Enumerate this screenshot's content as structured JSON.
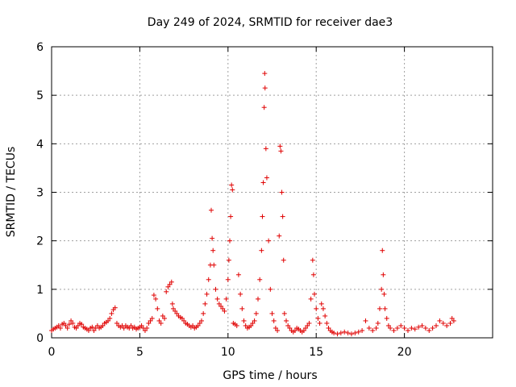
{
  "chart_data": {
    "type": "scatter",
    "title": "Day 249 of 2024, SRMTID for receiver dae3",
    "xlabel": "GPS time / hours",
    "ylabel": "SRMTID / TECUs",
    "xlim": [
      0,
      25
    ],
    "ylim": [
      0,
      6
    ],
    "xticks": [
      0,
      5,
      10,
      15,
      20
    ],
    "yticks": [
      0,
      1,
      2,
      3,
      4,
      5,
      6
    ],
    "grid": true,
    "marker": "+",
    "color": "#e00000",
    "series": [
      {
        "name": "SRMTID",
        "points": [
          [
            0.0,
            0.15
          ],
          [
            0.1,
            0.18
          ],
          [
            0.2,
            0.2
          ],
          [
            0.3,
            0.22
          ],
          [
            0.4,
            0.25
          ],
          [
            0.5,
            0.2
          ],
          [
            0.6,
            0.28
          ],
          [
            0.7,
            0.3
          ],
          [
            0.8,
            0.25
          ],
          [
            0.9,
            0.2
          ],
          [
            1.0,
            0.28
          ],
          [
            1.1,
            0.35
          ],
          [
            1.2,
            0.3
          ],
          [
            1.3,
            0.22
          ],
          [
            1.4,
            0.2
          ],
          [
            1.5,
            0.25
          ],
          [
            1.6,
            0.3
          ],
          [
            1.7,
            0.28
          ],
          [
            1.8,
            0.22
          ],
          [
            1.9,
            0.2
          ],
          [
            2.0,
            0.18
          ],
          [
            2.1,
            0.15
          ],
          [
            2.2,
            0.2
          ],
          [
            2.3,
            0.22
          ],
          [
            2.4,
            0.15
          ],
          [
            2.5,
            0.2
          ],
          [
            2.6,
            0.25
          ],
          [
            2.7,
            0.2
          ],
          [
            2.8,
            0.22
          ],
          [
            2.9,
            0.25
          ],
          [
            3.0,
            0.3
          ],
          [
            3.1,
            0.32
          ],
          [
            3.2,
            0.35
          ],
          [
            3.3,
            0.4
          ],
          [
            3.4,
            0.5
          ],
          [
            3.5,
            0.58
          ],
          [
            3.6,
            0.62
          ],
          [
            3.7,
            0.3
          ],
          [
            3.8,
            0.25
          ],
          [
            3.9,
            0.22
          ],
          [
            4.0,
            0.25
          ],
          [
            4.1,
            0.2
          ],
          [
            4.2,
            0.25
          ],
          [
            4.3,
            0.22
          ],
          [
            4.4,
            0.2
          ],
          [
            4.5,
            0.25
          ],
          [
            4.6,
            0.2
          ],
          [
            4.7,
            0.22
          ],
          [
            4.8,
            0.18
          ],
          [
            4.9,
            0.2
          ],
          [
            5.0,
            0.22
          ],
          [
            5.1,
            0.25
          ],
          [
            5.2,
            0.2
          ],
          [
            5.3,
            0.15
          ],
          [
            5.4,
            0.2
          ],
          [
            5.5,
            0.3
          ],
          [
            5.6,
            0.35
          ],
          [
            5.7,
            0.4
          ],
          [
            5.8,
            0.88
          ],
          [
            5.9,
            0.8
          ],
          [
            6.0,
            0.6
          ],
          [
            6.1,
            0.35
          ],
          [
            6.2,
            0.3
          ],
          [
            6.3,
            0.45
          ],
          [
            6.4,
            0.4
          ],
          [
            6.5,
            0.95
          ],
          [
            6.6,
            1.05
          ],
          [
            6.7,
            1.1
          ],
          [
            6.8,
            1.15
          ],
          [
            6.85,
            0.7
          ],
          [
            6.9,
            0.6
          ],
          [
            7.0,
            0.55
          ],
          [
            7.1,
            0.5
          ],
          [
            7.2,
            0.45
          ],
          [
            7.3,
            0.42
          ],
          [
            7.4,
            0.4
          ],
          [
            7.5,
            0.35
          ],
          [
            7.6,
            0.3
          ],
          [
            7.7,
            0.28
          ],
          [
            7.8,
            0.25
          ],
          [
            7.9,
            0.22
          ],
          [
            8.0,
            0.25
          ],
          [
            8.1,
            0.2
          ],
          [
            8.2,
            0.22
          ],
          [
            8.3,
            0.25
          ],
          [
            8.4,
            0.3
          ],
          [
            8.5,
            0.35
          ],
          [
            8.6,
            0.5
          ],
          [
            8.7,
            0.7
          ],
          [
            8.8,
            0.9
          ],
          [
            8.9,
            1.2
          ],
          [
            9.0,
            1.5
          ],
          [
            9.05,
            2.63
          ],
          [
            9.1,
            2.05
          ],
          [
            9.15,
            1.8
          ],
          [
            9.2,
            1.5
          ],
          [
            9.3,
            1.0
          ],
          [
            9.4,
            0.8
          ],
          [
            9.5,
            0.7
          ],
          [
            9.6,
            0.65
          ],
          [
            9.7,
            0.6
          ],
          [
            9.8,
            0.55
          ],
          [
            9.9,
            0.8
          ],
          [
            10.0,
            1.2
          ],
          [
            10.05,
            1.6
          ],
          [
            10.1,
            2.0
          ],
          [
            10.15,
            2.5
          ],
          [
            10.2,
            3.15
          ],
          [
            10.25,
            3.05
          ],
          [
            10.3,
            0.3
          ],
          [
            10.4,
            0.28
          ],
          [
            10.5,
            0.25
          ],
          [
            10.6,
            1.3
          ],
          [
            10.7,
            0.9
          ],
          [
            10.8,
            0.6
          ],
          [
            10.9,
            0.35
          ],
          [
            11.0,
            0.25
          ],
          [
            11.1,
            0.2
          ],
          [
            11.2,
            0.22
          ],
          [
            11.3,
            0.25
          ],
          [
            11.4,
            0.3
          ],
          [
            11.5,
            0.35
          ],
          [
            11.6,
            0.5
          ],
          [
            11.7,
            0.8
          ],
          [
            11.8,
            1.2
          ],
          [
            11.9,
            1.8
          ],
          [
            11.95,
            2.5
          ],
          [
            12.0,
            3.2
          ],
          [
            12.05,
            4.75
          ],
          [
            12.08,
            5.45
          ],
          [
            12.1,
            5.15
          ],
          [
            12.15,
            3.9
          ],
          [
            12.2,
            3.3
          ],
          [
            12.3,
            2.0
          ],
          [
            12.4,
            1.0
          ],
          [
            12.5,
            0.5
          ],
          [
            12.6,
            0.35
          ],
          [
            12.7,
            0.2
          ],
          [
            12.8,
            0.15
          ],
          [
            12.9,
            2.1
          ],
          [
            12.95,
            3.95
          ],
          [
            13.0,
            3.85
          ],
          [
            13.05,
            3.0
          ],
          [
            13.1,
            2.5
          ],
          [
            13.15,
            1.6
          ],
          [
            13.2,
            0.5
          ],
          [
            13.3,
            0.35
          ],
          [
            13.4,
            0.25
          ],
          [
            13.5,
            0.2
          ],
          [
            13.6,
            0.15
          ],
          [
            13.7,
            0.12
          ],
          [
            13.8,
            0.15
          ],
          [
            13.9,
            0.2
          ],
          [
            14.0,
            0.18
          ],
          [
            14.1,
            0.15
          ],
          [
            14.2,
            0.12
          ],
          [
            14.3,
            0.15
          ],
          [
            14.4,
            0.2
          ],
          [
            14.5,
            0.25
          ],
          [
            14.6,
            0.3
          ],
          [
            14.7,
            0.8
          ],
          [
            14.8,
            1.6
          ],
          [
            14.85,
            1.3
          ],
          [
            14.9,
            0.9
          ],
          [
            15.0,
            0.6
          ],
          [
            15.1,
            0.4
          ],
          [
            15.2,
            0.3
          ],
          [
            15.3,
            0.7
          ],
          [
            15.4,
            0.6
          ],
          [
            15.5,
            0.45
          ],
          [
            15.6,
            0.3
          ],
          [
            15.7,
            0.2
          ],
          [
            15.8,
            0.15
          ],
          [
            15.9,
            0.12
          ],
          [
            16.0,
            0.1
          ],
          [
            16.2,
            0.08
          ],
          [
            16.4,
            0.1
          ],
          [
            16.6,
            0.12
          ],
          [
            16.8,
            0.1
          ],
          [
            17.0,
            0.08
          ],
          [
            17.2,
            0.1
          ],
          [
            17.4,
            0.12
          ],
          [
            17.6,
            0.15
          ],
          [
            17.8,
            0.35
          ],
          [
            18.0,
            0.2
          ],
          [
            18.2,
            0.15
          ],
          [
            18.4,
            0.2
          ],
          [
            18.5,
            0.3
          ],
          [
            18.6,
            0.6
          ],
          [
            18.7,
            1.0
          ],
          [
            18.75,
            1.8
          ],
          [
            18.8,
            1.3
          ],
          [
            18.85,
            0.9
          ],
          [
            18.9,
            0.6
          ],
          [
            19.0,
            0.4
          ],
          [
            19.1,
            0.25
          ],
          [
            19.2,
            0.2
          ],
          [
            19.4,
            0.15
          ],
          [
            19.6,
            0.2
          ],
          [
            19.8,
            0.25
          ],
          [
            20.0,
            0.2
          ],
          [
            20.2,
            0.15
          ],
          [
            20.4,
            0.2
          ],
          [
            20.6,
            0.18
          ],
          [
            20.8,
            0.22
          ],
          [
            21.0,
            0.25
          ],
          [
            21.2,
            0.2
          ],
          [
            21.4,
            0.15
          ],
          [
            21.6,
            0.2
          ],
          [
            21.8,
            0.25
          ],
          [
            22.0,
            0.35
          ],
          [
            22.2,
            0.3
          ],
          [
            22.4,
            0.25
          ],
          [
            22.6,
            0.3
          ],
          [
            22.7,
            0.4
          ],
          [
            22.8,
            0.35
          ]
        ]
      }
    ]
  }
}
